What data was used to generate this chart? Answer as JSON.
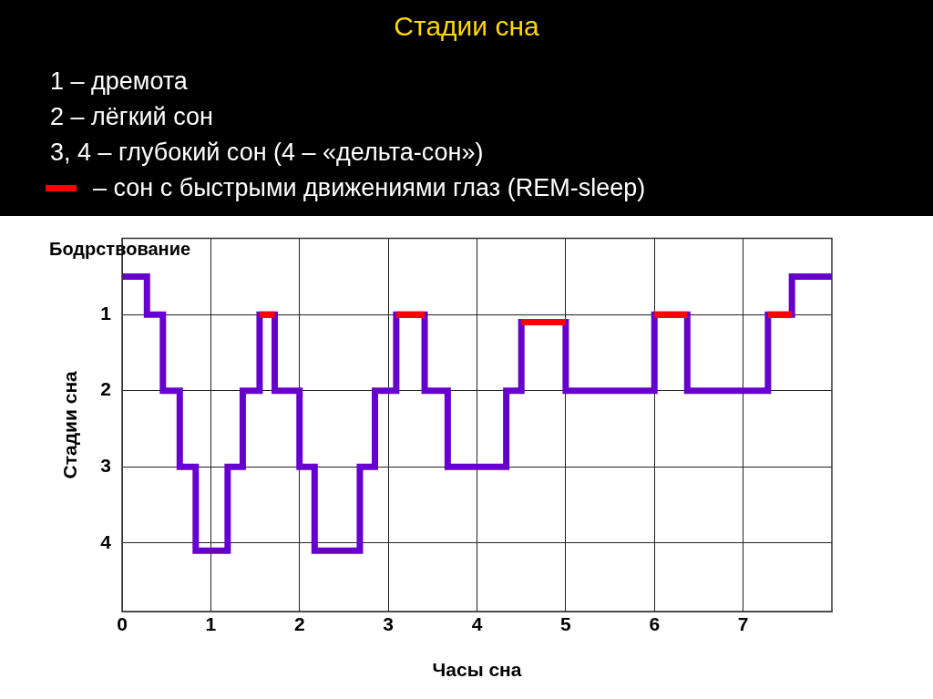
{
  "chart_data": {
    "type": "step",
    "title": "Стадии сна",
    "annotations": [
      "1 – дремота",
      "2 – лёгкий сон",
      "3, 4 – глубокий сон (4 – «дельта-сон»)",
      {
        "text": "Бодрствование",
        "x": 0,
        "y": 0.5
      }
    ],
    "xlabel": "Часы сна",
    "ylabel": "Стадии сна",
    "series": [
      {
        "color": "#6600cc",
        "x": [
          0,
          0.28,
          0.46,
          0.65,
          0.83,
          1.19,
          1.36,
          1.55,
          1.72,
          2.0,
          2.17,
          2.68,
          2.85,
          3.09,
          3.41,
          3.67,
          4.33,
          4.5,
          5.0,
          6.0,
          6.37,
          7.28,
          7.55,
          8
        ],
        "values": [
          0.5,
          1,
          2,
          3,
          4.1,
          3,
          2,
          1,
          2,
          3,
          4.1,
          3,
          2,
          1,
          2,
          3,
          2,
          1.1,
          2,
          1,
          2,
          1,
          0.5,
          0.5
        ]
      },
      {
        "name": "– сон с быстрыми движениями глаз (REM-sleep)",
        "color": "#ff0000",
        "x": [
          1.55,
          1.72,
          1.73,
          3.09,
          3.41,
          3.42,
          4.5,
          5.0,
          5.01,
          6.0,
          6.37,
          6.38,
          7.28,
          7.55
        ],
        "values": [
          1,
          1,
          null,
          1,
          1,
          null,
          1.1,
          1.1,
          null,
          1,
          1,
          null,
          1,
          1
        ]
      }
    ],
    "xlim": [
      0,
      8
    ],
    "xticks": [
      0,
      1,
      2,
      3,
      4,
      5,
      6,
      7
    ],
    "ylim": [
      4.9,
      0
    ],
    "yticks": [
      1,
      2,
      3,
      4
    ],
    "grid": true,
    "legend": "top",
    "marker": "none",
    "line_style": "solid"
  }
}
